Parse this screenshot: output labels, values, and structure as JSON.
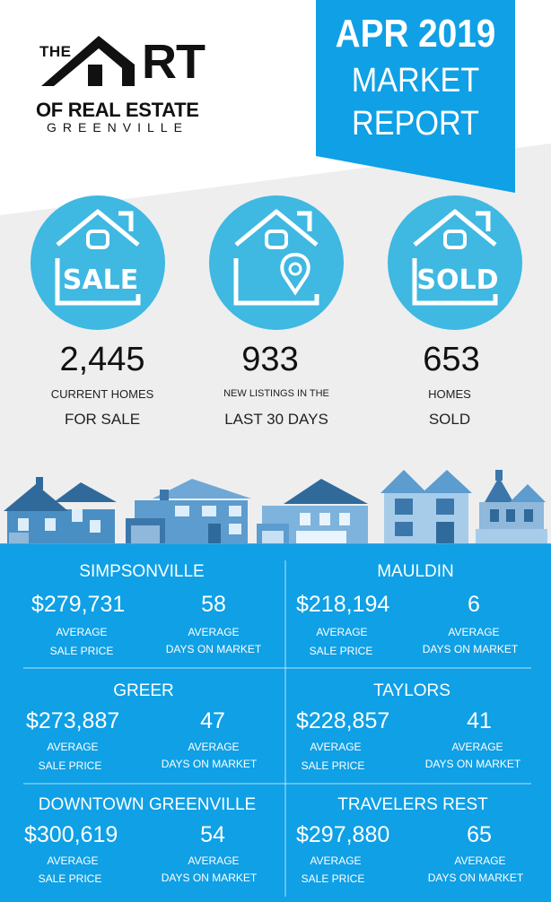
{
  "logo": {
    "the": "THE",
    "art_letters": "RT",
    "line2": "OF REAL ESTATE",
    "line3": "GREENVILLE"
  },
  "report": {
    "title": "APR 2019",
    "line2": "MARKET",
    "line3": "REPORT"
  },
  "stats": [
    {
      "icon": "house-sale-icon",
      "badge": "SALE",
      "value": "2,445",
      "line1": "CURRENT HOMES",
      "line2": "FOR SALE"
    },
    {
      "icon": "house-location-pin-icon",
      "badge": "",
      "value": "933",
      "line1": "NEW LISTINGS IN THE",
      "line2": "LAST 30 DAYS"
    },
    {
      "icon": "house-sold-icon",
      "badge": "SOLD",
      "value": "653",
      "line1": "HOMES",
      "line2": "SOLD"
    }
  ],
  "labels": {
    "avg": "AVERAGE",
    "sale_price": "SALE PRICE",
    "days_on_market": "DAYS ON MARKET"
  },
  "cities": [
    {
      "name": "SIMPSONVILLE",
      "price": "$279,731",
      "days": "58"
    },
    {
      "name": "MAULDIN",
      "price": "$218,194",
      "days": "6"
    },
    {
      "name": "GREER",
      "price": "$273,887",
      "days": "47"
    },
    {
      "name": "TAYLORS",
      "price": "$228,857",
      "days": "41"
    },
    {
      "name": "DOWNTOWN GREENVILLE",
      "price": "$300,619",
      "days": "54"
    },
    {
      "name": "TRAVELERS REST",
      "price": "$297,880",
      "days": "65"
    }
  ],
  "colors": {
    "accent": "#0FA0E6",
    "circle": "#3FB8E2",
    "grey": "#EEEEEF"
  }
}
